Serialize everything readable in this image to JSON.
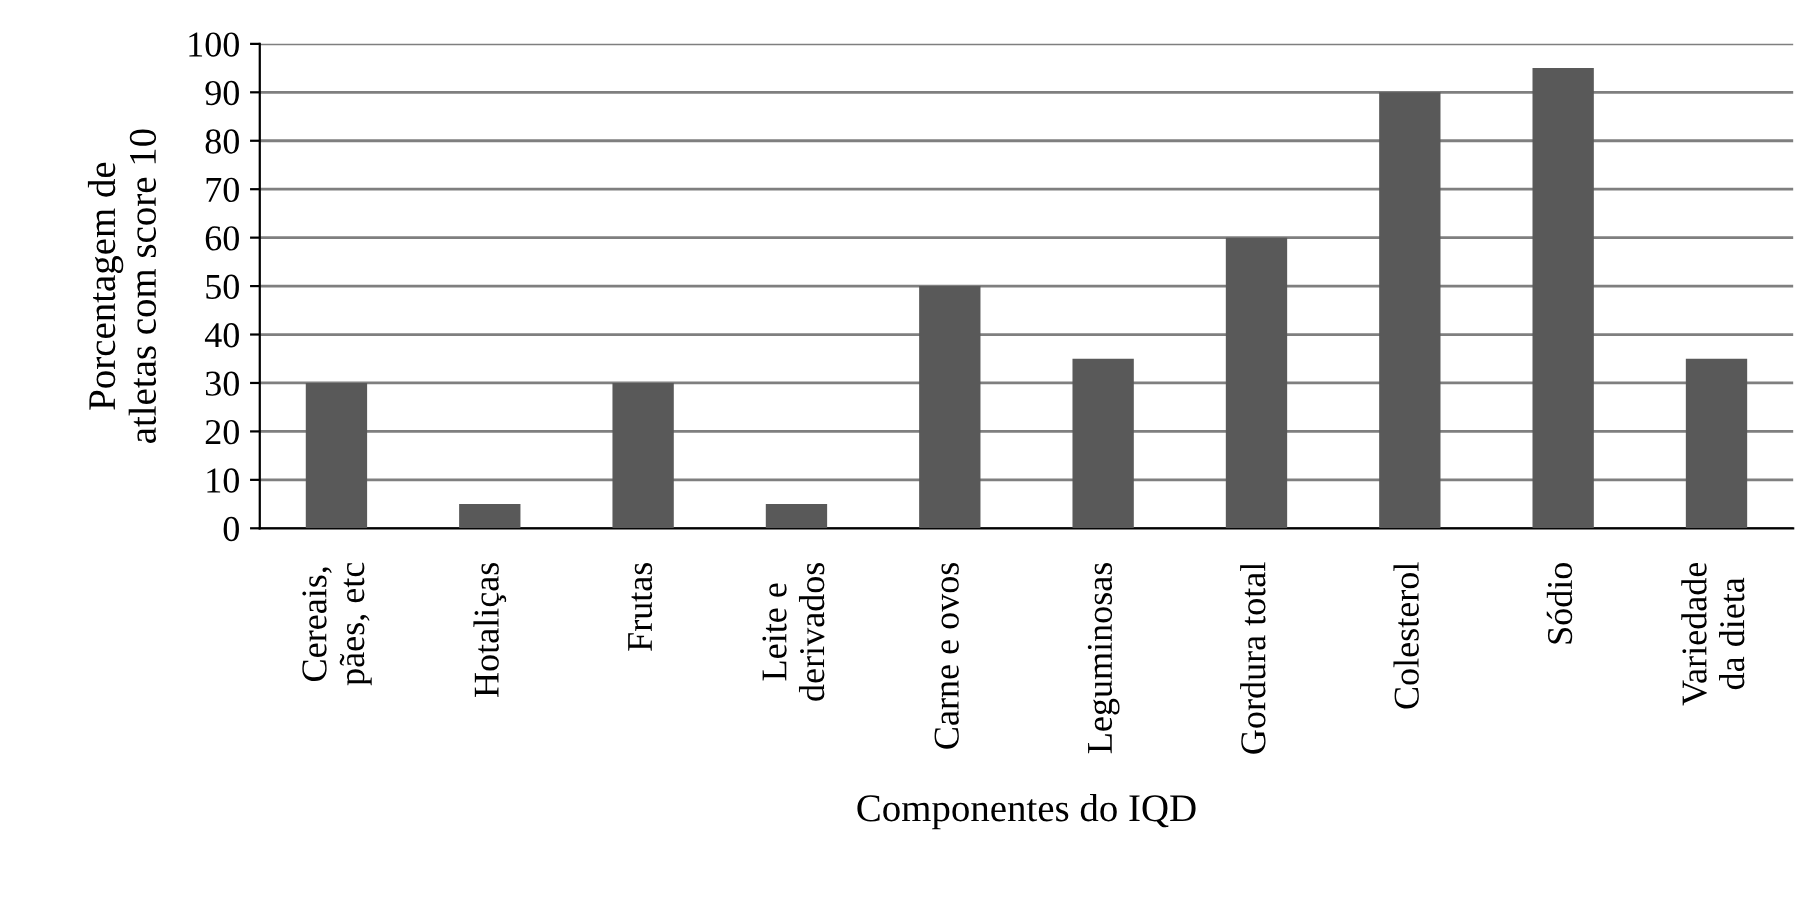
{
  "chart_data": {
    "type": "bar",
    "categories": [
      "Cereais,\npães, etc",
      "Hotaliças",
      "Frutas",
      "Leite e\nderivados",
      "Carne e ovos",
      "Leguminosas",
      "Gordura total",
      "Colesterol",
      "Sódio",
      "Variedade\nda dieta"
    ],
    "values": [
      30,
      5,
      30,
      5,
      50,
      35,
      60,
      90,
      95,
      35
    ],
    "color": "#595959",
    "xlabel": "Componentes do IQD",
    "ylabel": "Porcentagem de\natletas com score 10",
    "ylim": [
      0,
      100
    ],
    "yticks": [
      0,
      10,
      20,
      30,
      40,
      50,
      60,
      70,
      80,
      90,
      100
    ],
    "grid": "y",
    "legend": false
  }
}
